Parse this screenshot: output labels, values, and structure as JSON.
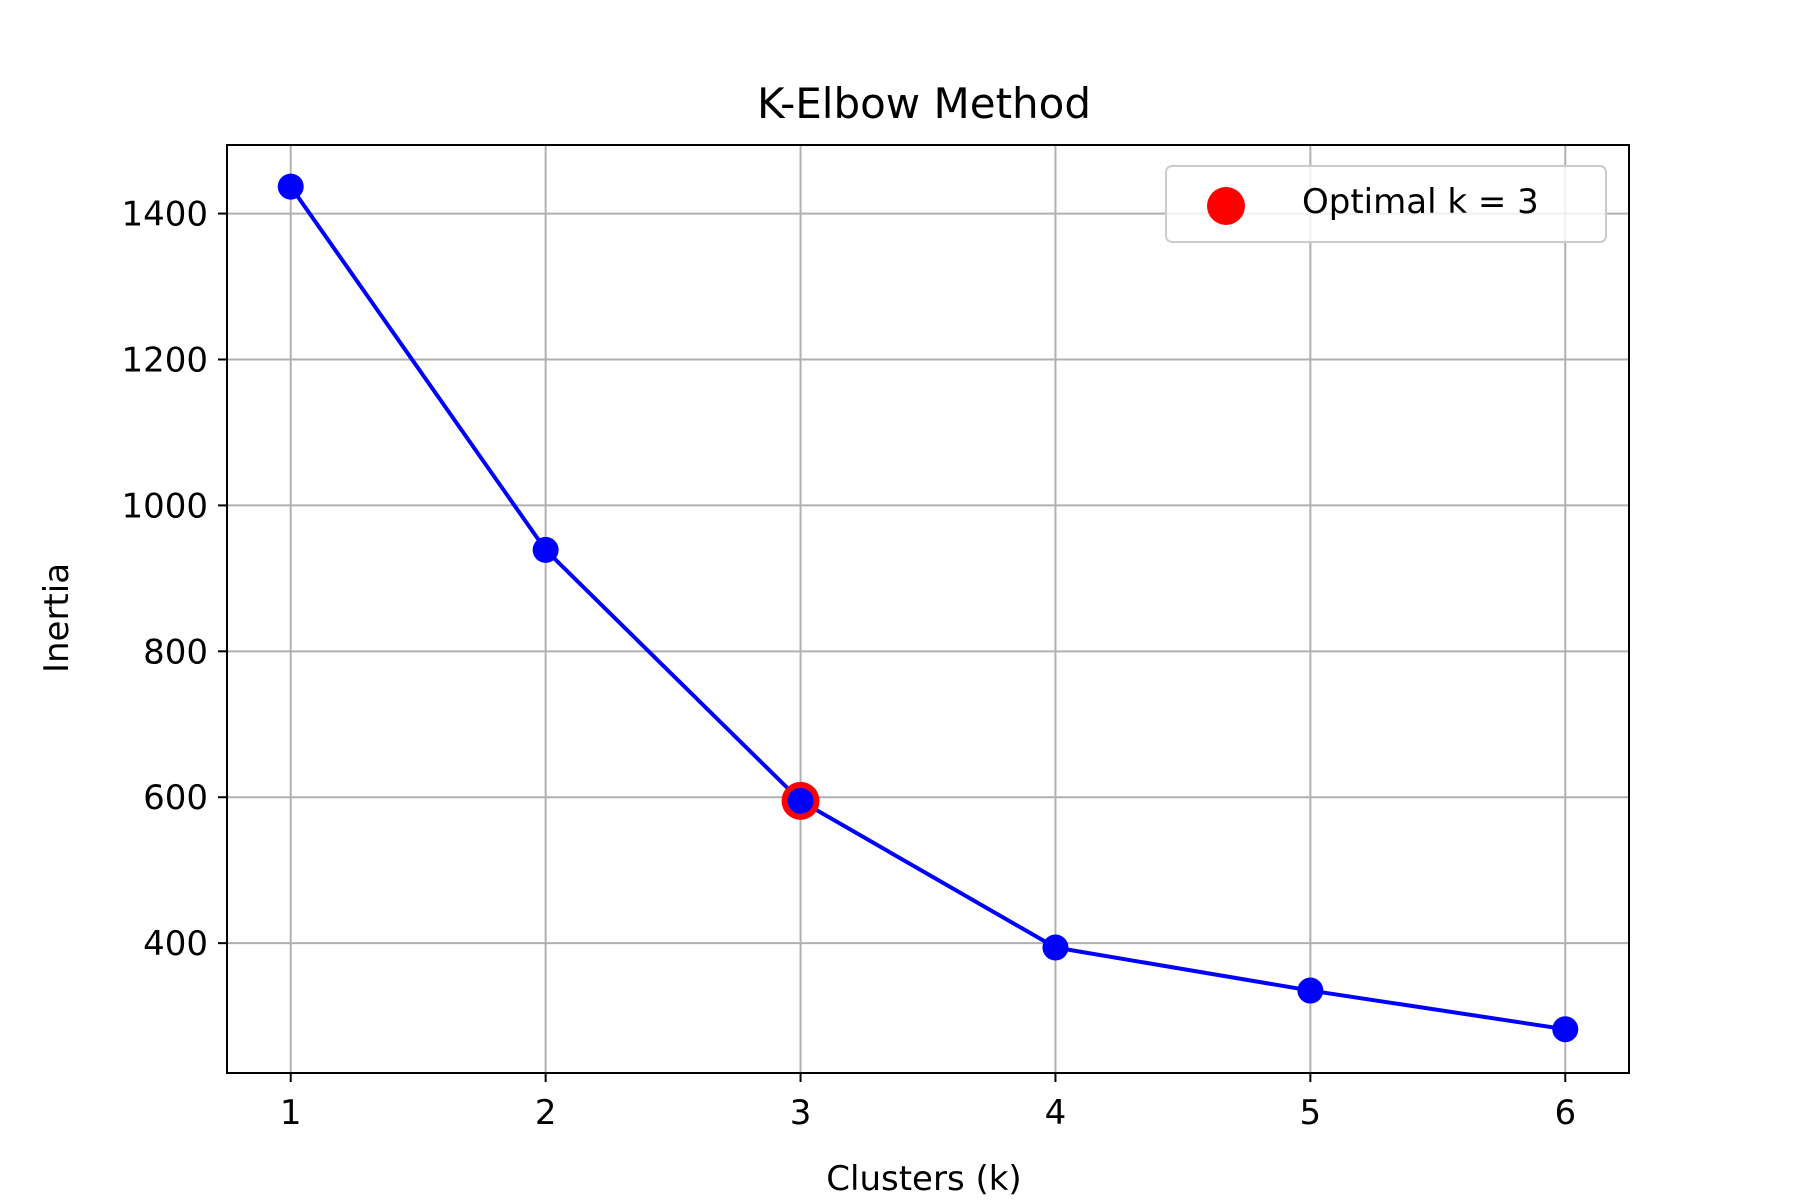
{
  "chart_data": {
    "type": "line",
    "title": "K-Elbow Method",
    "xlabel": "Clusters (k)",
    "ylabel": "Inertia",
    "x": [
      1,
      2,
      3,
      4,
      5,
      6
    ],
    "xticks": [
      1,
      2,
      3,
      4,
      5,
      6
    ],
    "xlim": [
      0.75,
      6.25
    ],
    "yticks": [
      400,
      600,
      800,
      1000,
      1200,
      1400
    ],
    "ylim": [
      222,
      1494
    ],
    "grid": true,
    "series": [
      {
        "values": [
          1437,
          939,
          595,
          394,
          335,
          282
        ],
        "color": "#0000ff",
        "marker": "circle"
      }
    ],
    "highlight": {
      "label": "Optimal k = 3",
      "x": 3,
      "y": 595,
      "color": "#ff0000",
      "marker": "circle"
    },
    "legend": {
      "placement": "top-right",
      "entries": [
        "Optimal k = 3"
      ]
    }
  }
}
